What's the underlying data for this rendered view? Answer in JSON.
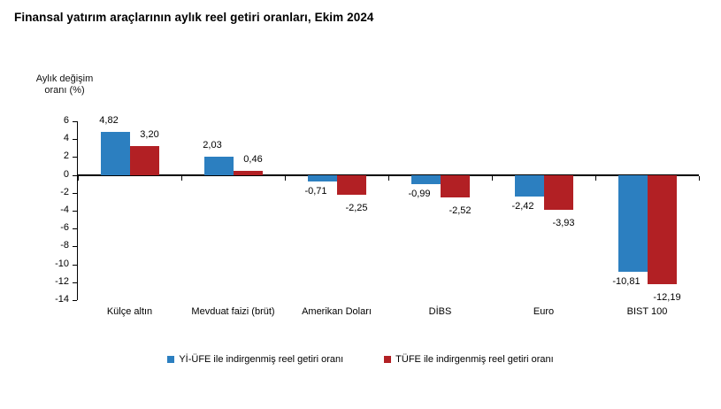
{
  "page": {
    "title": "Finansal yatırım araçlarının aylık reel getiri oranları, Ekim 2024"
  },
  "chart_data": {
    "type": "bar",
    "title": "Finansal yatırım araçlarının aylık reel getiri oranları, Ekim 2024",
    "ylabel_lines": [
      "Aylık değişim",
      "oranı (%)"
    ],
    "categories": [
      "Külçe altın",
      "Mevduat faizi (brüt)",
      "Amerikan Doları",
      "DİBS",
      "Euro",
      "BIST 100"
    ],
    "series": [
      {
        "name": "Yİ-ÜFE ile indirgenmiş reel getiri oranı",
        "color": "#2C7FC0",
        "values": [
          4.82,
          2.03,
          -0.71,
          -0.99,
          -2.42,
          -10.81
        ],
        "value_labels": [
          "4,82",
          "2,03",
          "-0,71",
          "-0,99",
          "-2,42",
          "-10,81"
        ]
      },
      {
        "name": "TÜFE ile indirgenmiş reel getiri oranı",
        "color": "#B22024",
        "values": [
          3.2,
          0.46,
          -2.25,
          -2.52,
          -3.93,
          -12.19
        ],
        "value_labels": [
          "3,20",
          "0,46",
          "-2,25",
          "-2,52",
          "-3,93",
          "-12,19"
        ]
      }
    ],
    "ylim": [
      -14,
      6
    ],
    "yticks": [
      6,
      4,
      2,
      0,
      -2,
      -4,
      -6,
      -8,
      -10,
      -12,
      -14
    ],
    "grid": false,
    "legend_position": "bottom",
    "axis_color": "#000000"
  }
}
